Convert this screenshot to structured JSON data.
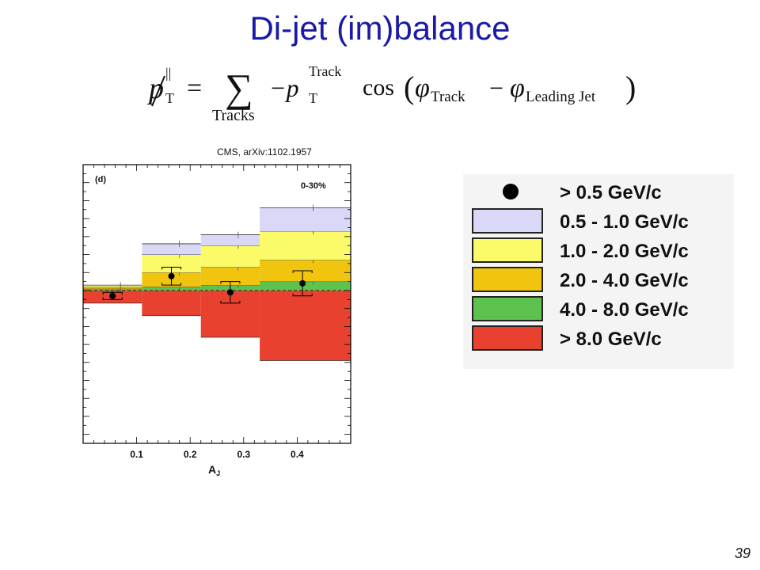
{
  "slide": {
    "title": "Di-jet (im)balance",
    "credit": "CMS, arXiv:1102.1957",
    "page_number": "39"
  },
  "formula": {
    "lhs_symbol": "p",
    "lhs_superscript": "||",
    "lhs_subscript": "T",
    "equals": "=",
    "sum_symbol": "∑",
    "sum_subscript": "Tracks",
    "minus_p": "−p",
    "p_superscript": "Track",
    "p_subscript": "T",
    "cos_text": "cos",
    "open_paren": "(",
    "phi1": "φ",
    "phi1_subscript": "Track",
    "minus": "−",
    "phi2": "φ",
    "phi2_subscript": "Leading Jet",
    "close_paren": ")"
  },
  "chart_data": {
    "type": "bar",
    "panel_label": "(d)",
    "centrality_label": "0-30%",
    "xlabel": "A",
    "xlabel_subscript": "J",
    "ylabel": "",
    "xlim": [
      0.0,
      0.5
    ],
    "ylim": [
      -0.85,
      0.7
    ],
    "x_ticks": [
      "0.1",
      "0.2",
      "0.3",
      "0.4"
    ],
    "x_tick_values": [
      0.1,
      0.2,
      0.3,
      0.4
    ],
    "bin_edges": [
      0.0,
      0.11,
      0.22,
      0.33,
      0.5
    ],
    "stack_positive": [
      {
        "name": "4.0 - 8.0 GeV/c",
        "color": "#5ec24e",
        "values": [
          0.01,
          0.02,
          0.03,
          0.05
        ]
      },
      {
        "name": "2.0 - 4.0 GeV/c",
        "color": "#f1c40f",
        "values": [
          0.01,
          0.08,
          0.1,
          0.12
        ]
      },
      {
        "name": "1.0 - 2.0 GeV/c",
        "color": "#fbfb6a",
        "values": [
          0.01,
          0.1,
          0.12,
          0.16
        ]
      },
      {
        "name": "0.5 - 1.0 GeV/c",
        "color": "#d9d9f7",
        "values": [
          0.0,
          0.06,
          0.06,
          0.13
        ]
      }
    ],
    "stack_negative": [
      {
        "name": "> 8.0 GeV/c",
        "color": "#e8412f",
        "values": [
          -0.07,
          -0.14,
          -0.26,
          -0.39
        ]
      }
    ],
    "points": {
      "name": "> 0.5 GeV/c",
      "x": [
        0.055,
        0.165,
        0.275,
        0.41
      ],
      "y": [
        -0.03,
        0.08,
        -0.01,
        0.04
      ],
      "err": [
        0.02,
        0.05,
        0.06,
        0.07
      ]
    }
  },
  "legend": {
    "entries": [
      {
        "label": "> 0.5 GeV/c",
        "kind": "dot",
        "color": "#000000"
      },
      {
        "label": "0.5 - 1.0 GeV/c",
        "kind": "box",
        "color": "#d9d9f7"
      },
      {
        "label": "1.0 - 2.0 GeV/c",
        "kind": "box",
        "color": "#fbfb6a"
      },
      {
        "label": "2.0 - 4.0 GeV/c",
        "kind": "box",
        "color": "#f1c40f"
      },
      {
        "label": "4.0 - 8.0 GeV/c",
        "kind": "box",
        "color": "#5ec24e"
      },
      {
        "label": "> 8.0 GeV/c",
        "kind": "box",
        "color": "#e8412f"
      }
    ]
  }
}
